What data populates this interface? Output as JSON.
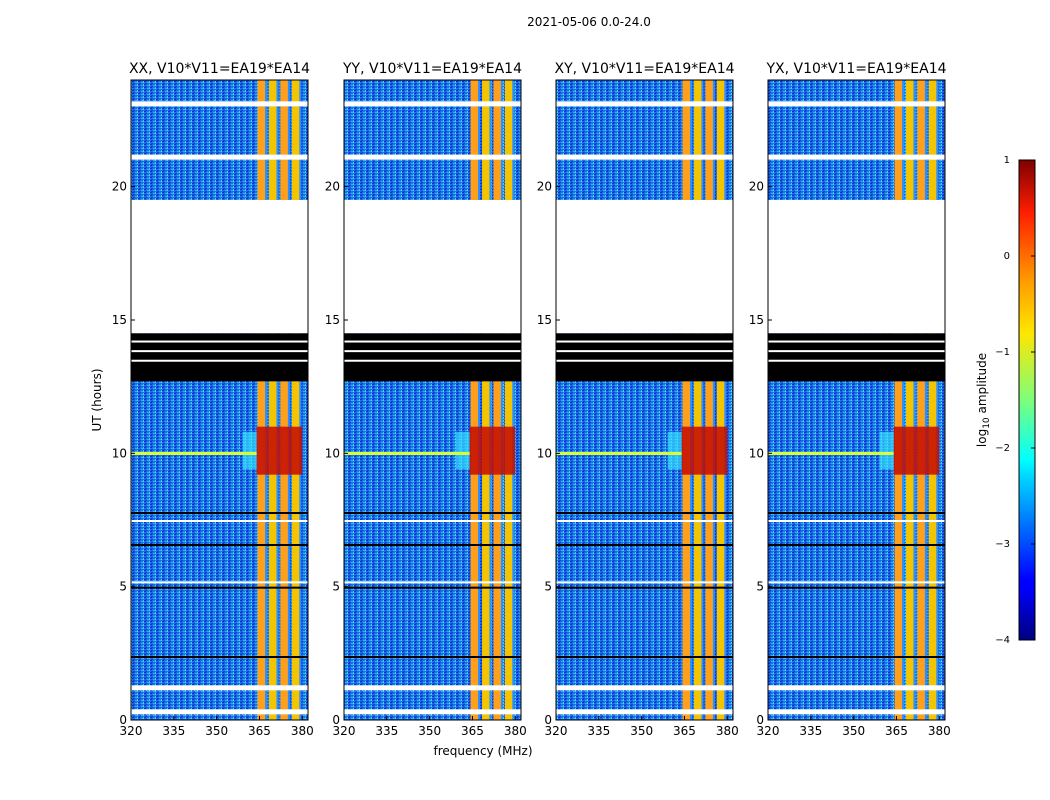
{
  "suptitle": "2021-05-06 0.0-24.0",
  "chart_data": {
    "type": "heatmap",
    "ylabel": "UT (hours)",
    "xlabel": "frequency (MHz)",
    "xlim": [
      320,
      382
    ],
    "ylim": [
      0,
      24
    ],
    "x_ticks": [
      "320",
      "335",
      "350",
      "365",
      "380"
    ],
    "y_ticks": [
      "0",
      "5",
      "10",
      "15",
      "20"
    ],
    "panels": [
      {
        "title": "XX, V10*V11=EA19*EA14"
      },
      {
        "title": "YY, V10*V11=EA19*EA14"
      },
      {
        "title": "XY, V10*V11=EA19*EA14"
      },
      {
        "title": "YX, V10*V11=EA19*EA14"
      }
    ],
    "data_gap_hours": [
      19.5,
      14.5
    ],
    "flagged_hours": [
      12.7,
      14.5
    ],
    "strong_rfi_band_mhz": [
      360,
      380
    ],
    "colorbar": {
      "label_prefix": "log",
      "label_sub": "10",
      "label_suffix": " amplitude",
      "range": [
        -4,
        1
      ],
      "ticks": [
        "1",
        "0",
        "−1",
        "−2",
        "−3",
        "−4"
      ],
      "colormap": "jet"
    }
  }
}
